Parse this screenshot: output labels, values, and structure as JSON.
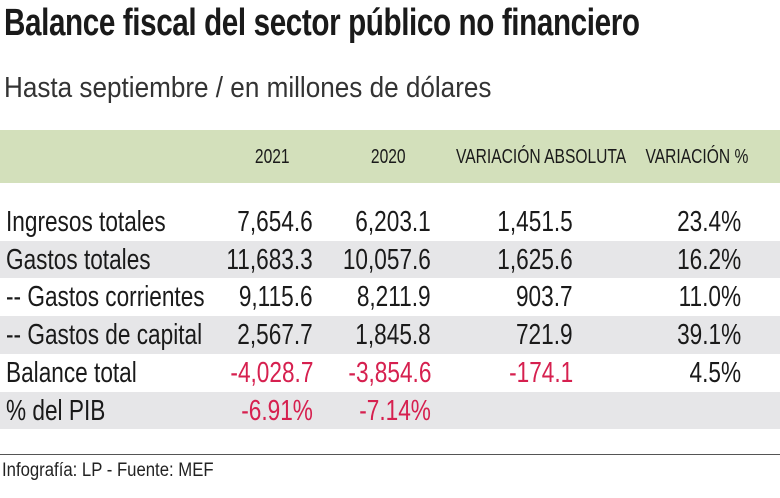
{
  "title": "Balance fiscal del sector público no financiero",
  "subtitle": "Hasta septiembre / en millones de dólares",
  "footer": "Infografía: LP - Fuente: MEF",
  "colors": {
    "header_bg": "#d3e0bb",
    "stripe_bg": "#e6e6e8",
    "negative": "#d6204f"
  },
  "chart_data": {
    "type": "table",
    "columns": [
      "",
      "2021",
      "2020",
      "VARIACIÓN ABSOLUTA",
      "VARIACIÓN %"
    ],
    "rows": [
      {
        "label": "Ingresos totales",
        "values": [
          "7,654.6",
          "6,203.1",
          "1,451.5",
          "23.4%"
        ]
      },
      {
        "label": "Gastos totales",
        "values": [
          "11,683.3",
          "10,057.6",
          "1,625.6",
          "16.2%"
        ]
      },
      {
        "label": "-- Gastos corrientes",
        "values": [
          "9,115.6",
          "8,211.9",
          "903.7",
          "11.0%"
        ]
      },
      {
        "label": "-- Gastos de capital",
        "values": [
          "2,567.7",
          "1,845.8",
          "721.9",
          "39.1%"
        ]
      },
      {
        "label": "Balance total",
        "values": [
          "-4,028.7",
          "-3,854.6",
          "-174.1",
          "4.5%"
        ]
      },
      {
        "label": "% del PIB",
        "values": [
          "-6.91%",
          "-7.14%",
          "",
          ""
        ]
      }
    ]
  }
}
